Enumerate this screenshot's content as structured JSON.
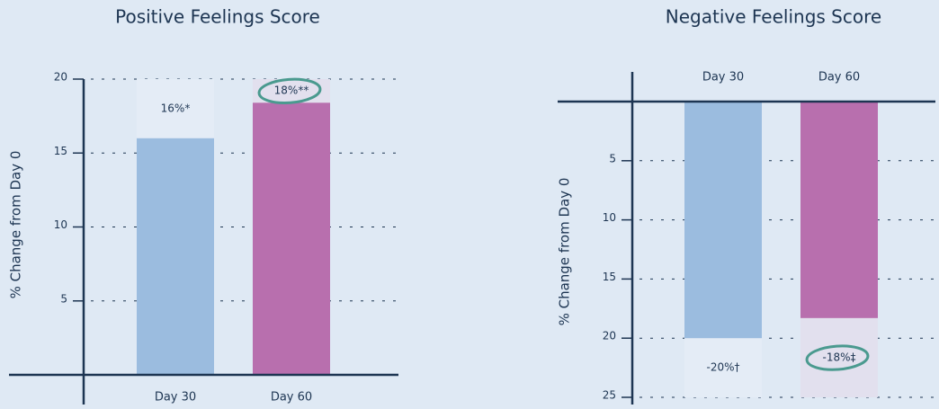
{
  "chart_data": [
    {
      "type": "bar",
      "title": "Positive Feelings Score",
      "y_label": "% Change from Day 0",
      "categories": [
        "Day 30",
        "Day 60"
      ],
      "values": [
        16,
        18.4
      ],
      "value_labels": [
        "16%*",
        "18%**"
      ],
      "colors": [
        "#9bbcdf",
        "#b86fae"
      ],
      "ylim": [
        0,
        20
      ],
      "yticks": [
        5,
        10,
        15,
        20
      ],
      "grid": true
    },
    {
      "type": "bar",
      "title": "Negative Feelings Score",
      "y_label": "% Change from Day 0",
      "categories": [
        "Day 30",
        "Day 60"
      ],
      "values": [
        -20,
        -18.3
      ],
      "value_labels": [
        "-20%†",
        "-18%‡"
      ],
      "colors": [
        "#9bbcdf",
        "#b86fae"
      ],
      "ylim": [
        -25,
        0
      ],
      "yticks": [
        {
          "value": -5,
          "label": "5"
        },
        {
          "value": -10,
          "label": "10"
        },
        {
          "value": -15,
          "label": "15"
        },
        {
          "value": -20,
          "label": "20"
        },
        {
          "value": -25,
          "label": "25"
        }
      ],
      "grid": true
    }
  ]
}
